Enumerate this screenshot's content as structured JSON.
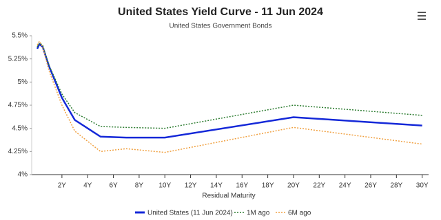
{
  "chart_data": {
    "type": "line",
    "title": "United States Yield Curve - 11 Jun 2024",
    "subtitle": "United States Government Bonds",
    "x_label": "Residual Maturity",
    "x": [
      0.083,
      0.25,
      0.5,
      1,
      2,
      3,
      5,
      7,
      10,
      20,
      30
    ],
    "series": [
      {
        "name": "United States (11 Jun 2024)",
        "color": "#1428d8",
        "dash": "solid",
        "values": [
          5.36,
          5.41,
          5.38,
          5.17,
          4.83,
          4.59,
          4.41,
          4.4,
          4.4,
          4.62,
          4.53
        ]
      },
      {
        "name": "1M ago",
        "color": "#2e7d32",
        "dash": "dotted",
        "values": [
          5.38,
          5.42,
          5.4,
          5.18,
          4.87,
          4.67,
          4.52,
          4.51,
          4.5,
          4.75,
          4.64
        ]
      },
      {
        "name": "6M ago",
        "color": "#f0a040",
        "dash": "dotted",
        "values": [
          5.4,
          5.44,
          5.38,
          5.12,
          4.75,
          4.47,
          4.25,
          4.28,
          4.24,
          4.51,
          4.33
        ]
      }
    ],
    "xlim": [
      -0.35,
      30.5
    ],
    "xticks": [
      {
        "value": 2,
        "label": "2Y"
      },
      {
        "value": 4,
        "label": "4Y"
      },
      {
        "value": 6,
        "label": "6Y"
      },
      {
        "value": 8,
        "label": "8Y"
      },
      {
        "value": 10,
        "label": "10Y"
      },
      {
        "value": 12,
        "label": "12Y"
      },
      {
        "value": 14,
        "label": "14Y"
      },
      {
        "value": 16,
        "label": "16Y"
      },
      {
        "value": 18,
        "label": "18Y"
      },
      {
        "value": 20,
        "label": "20Y"
      },
      {
        "value": 22,
        "label": "22Y"
      },
      {
        "value": 24,
        "label": "24Y"
      },
      {
        "value": 26,
        "label": "26Y"
      },
      {
        "value": 28,
        "label": "28Y"
      },
      {
        "value": 30,
        "label": "30Y"
      }
    ],
    "ylim": [
      4,
      5.5
    ],
    "yticks": [
      {
        "value": 4,
        "label": "4%"
      },
      {
        "value": 4.25,
        "label": "4.25%"
      },
      {
        "value": 4.5,
        "label": "4.5%"
      },
      {
        "value": 4.75,
        "label": "4.75%"
      },
      {
        "value": 5,
        "label": "5%"
      },
      {
        "value": 5.25,
        "label": "5.25%"
      },
      {
        "value": 5.5,
        "label": "5.5%"
      }
    ],
    "grid": false
  }
}
